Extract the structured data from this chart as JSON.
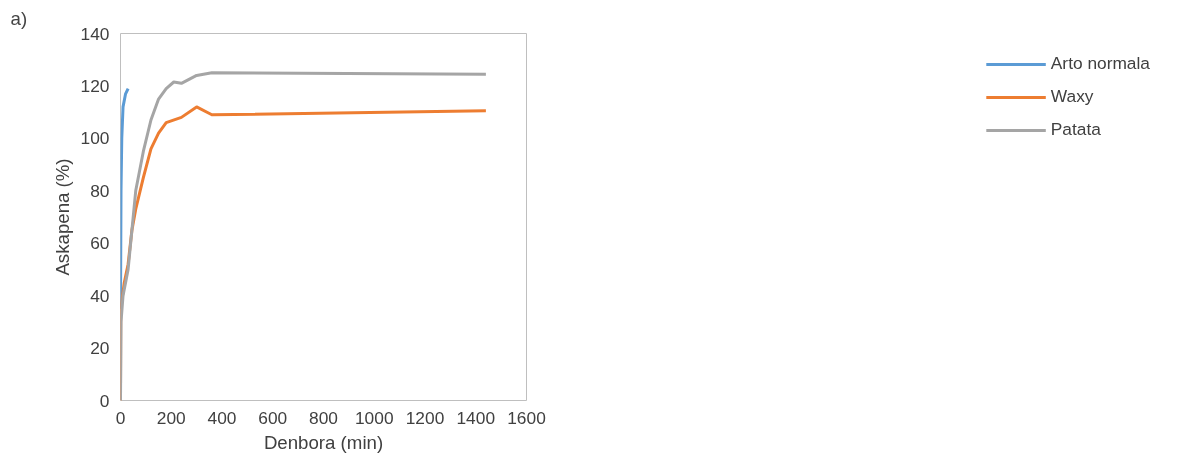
{
  "chart_data": {
    "type": "line",
    "title": "a)",
    "xlabel": "Denbora (min)",
    "ylabel": "Askapena (%)",
    "xlim": [
      0,
      1600
    ],
    "xticks": [
      0,
      200,
      400,
      600,
      800,
      1000,
      1200,
      1400,
      1600
    ],
    "ylim": [
      0,
      140
    ],
    "yticks": [
      0,
      20,
      40,
      60,
      80,
      100,
      120,
      140
    ],
    "grid": false,
    "legend": "right",
    "marker": "none",
    "line_style": "solid",
    "series": [
      {
        "name": "Arto normala",
        "color": "#5b9bd5",
        "x": [
          0,
          2,
          5,
          10,
          20,
          30
        ],
        "values": [
          35,
          80,
          100,
          112,
          117,
          119
        ]
      },
      {
        "name": "Waxy",
        "color": "#ed7d31",
        "x": [
          0,
          1,
          15,
          30,
          45,
          60,
          90,
          120,
          150,
          180,
          240,
          300,
          360,
          1440
        ],
        "values": [
          0,
          35,
          45,
          52,
          65,
          73,
          85,
          96,
          102,
          106,
          108,
          112,
          109,
          110.5
        ]
      },
      {
        "name": "Patata",
        "color": "#a5a5a5",
        "x": [
          0,
          2,
          10,
          30,
          45,
          60,
          90,
          120,
          150,
          180,
          210,
          240,
          300,
          360,
          1440
        ],
        "values": [
          0,
          30,
          40,
          50,
          65,
          80,
          95,
          107,
          115,
          119,
          121.5,
          121,
          124,
          125,
          124.5
        ]
      }
    ]
  }
}
